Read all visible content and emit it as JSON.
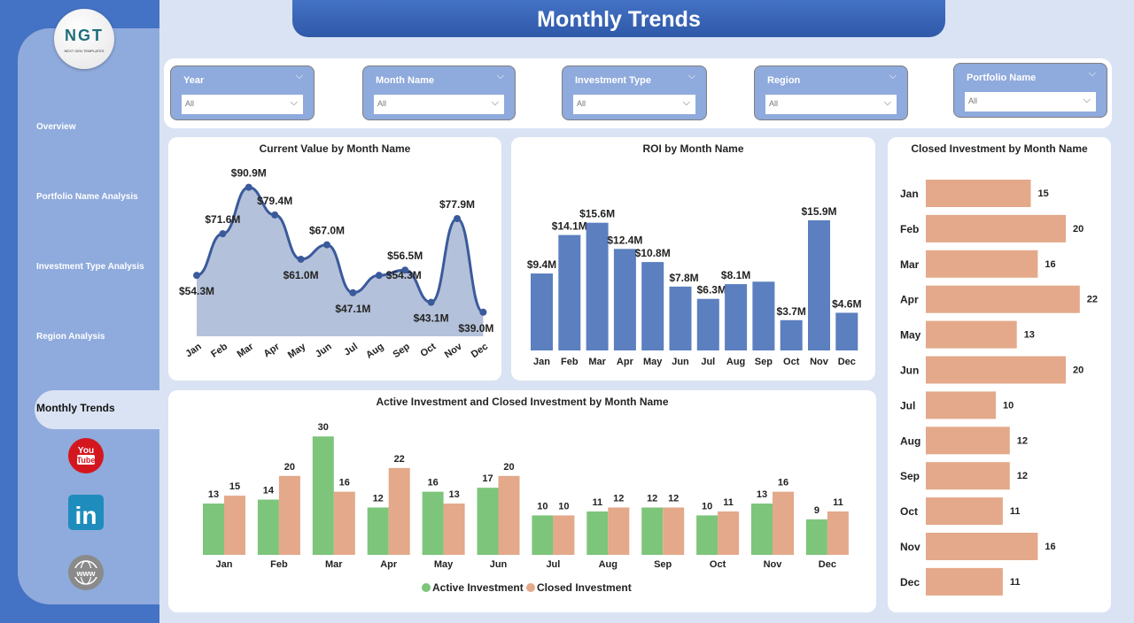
{
  "title": "Monthly Trends",
  "logo": {
    "text": "NGT",
    "tagline": "NEXT GEN TEMPLATES"
  },
  "nav": [
    "Overview",
    "Portfolio Name Analysis",
    "Investment Type Analysis",
    "Region Analysis",
    "Monthly Trends"
  ],
  "nav_active": "Monthly Trends",
  "social": [
    {
      "icon": "youtube-icon",
      "label": "You Tube"
    },
    {
      "icon": "linkedin-icon",
      "label": "in"
    },
    {
      "icon": "globe-icon",
      "label": "www"
    }
  ],
  "filters": [
    {
      "label": "Year",
      "value": "All"
    },
    {
      "label": "Month Name",
      "value": "All"
    },
    {
      "label": "Investment Type",
      "value": "All"
    },
    {
      "label": "Region",
      "value": "All"
    },
    {
      "label": "Portfolio Name",
      "value": "All"
    }
  ],
  "colors": {
    "primary": "#4472c4",
    "line": "#3a5a9b",
    "area": "#b4c1da",
    "bar": "#5b7fbf",
    "active": "#7dc57a",
    "closed": "#e3a98a"
  },
  "chart_data": [
    {
      "type": "area",
      "title": "Current Value by Month Name",
      "categories": [
        "Jan",
        "Feb",
        "Mar",
        "Apr",
        "May",
        "Jun",
        "Jul",
        "Aug",
        "Sep",
        "Oct",
        "Nov",
        "Dec"
      ],
      "values": [
        54.3,
        71.6,
        90.9,
        79.4,
        61.0,
        67.0,
        47.1,
        54.3,
        56.5,
        43.1,
        77.9,
        39.0
      ],
      "labels": [
        "$54.3M",
        "$71.6M",
        "$90.9M",
        "$79.4M",
        "$61.0M",
        "$67.0M",
        "$47.1M",
        "$54.3M",
        "$56.5M",
        "$43.1M",
        "$77.9M",
        "$39.0M"
      ]
    },
    {
      "type": "bar",
      "title": "ROI by Month Name",
      "categories": [
        "Jan",
        "Feb",
        "Mar",
        "Apr",
        "May",
        "Jun",
        "Jul",
        "Aug",
        "Sep",
        "Oct",
        "Nov",
        "Dec"
      ],
      "values": [
        9.4,
        14.1,
        15.6,
        12.4,
        10.8,
        7.8,
        6.3,
        8.1,
        8.4,
        3.7,
        15.9,
        4.6
      ],
      "labels": [
        "$9.4M",
        "$14.1M",
        "$15.6M",
        "$12.4M",
        "$10.8M",
        "$7.8M",
        "$6.3M",
        "$8.1M",
        "",
        "$3.7M",
        "$15.9M",
        "$4.6M"
      ]
    },
    {
      "type": "bar-horizontal",
      "title": "Closed Investment by Month Name",
      "categories": [
        "Jan",
        "Feb",
        "Mar",
        "Apr",
        "May",
        "Jun",
        "Jul",
        "Aug",
        "Sep",
        "Oct",
        "Nov",
        "Dec"
      ],
      "values": [
        15,
        20,
        16,
        22,
        13,
        20,
        10,
        12,
        12,
        11,
        16,
        11
      ]
    },
    {
      "type": "bar-grouped",
      "title": "Active Investment and Closed Investment by Month Name",
      "categories": [
        "Jan",
        "Feb",
        "Mar",
        "Apr",
        "May",
        "Jun",
        "Jul",
        "Aug",
        "Sep",
        "Oct",
        "Nov",
        "Dec"
      ],
      "legend": "bottom",
      "series": [
        {
          "name": "Active Investment",
          "values": [
            13,
            14,
            30,
            12,
            16,
            17,
            10,
            11,
            12,
            10,
            13,
            9
          ]
        },
        {
          "name": "Closed Investment",
          "values": [
            15,
            20,
            16,
            22,
            13,
            20,
            10,
            12,
            12,
            11,
            16,
            11
          ]
        }
      ]
    }
  ]
}
